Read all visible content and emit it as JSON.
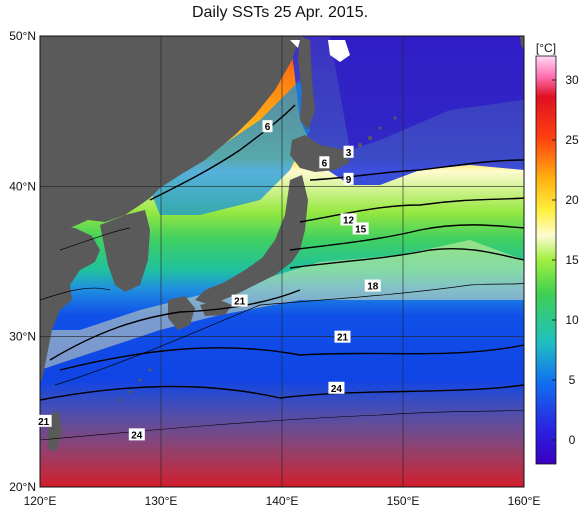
{
  "title": "Daily SSTs 25 Apr. 2015.",
  "map": {
    "lon_range": [
      120,
      160
    ],
    "lat_range": [
      20,
      50
    ],
    "lat_ticks": [
      {
        "value": 50,
        "label": "50°N"
      },
      {
        "value": 40,
        "label": "40°N"
      },
      {
        "value": 30,
        "label": "30°N"
      },
      {
        "value": 20,
        "label": "20°N"
      }
    ],
    "lon_ticks": [
      {
        "value": 120,
        "label": "120°E"
      },
      {
        "value": 130,
        "label": "130°E"
      },
      {
        "value": 140,
        "label": "140°E"
      },
      {
        "value": 150,
        "label": "150°E"
      },
      {
        "value": 160,
        "label": "160°E"
      }
    ],
    "gridlines": true,
    "land_color": "#5a5a5a",
    "contour_labels": [
      {
        "text": "6",
        "lon": 138.8,
        "lat": 44.0
      },
      {
        "text": "3",
        "lon": 145.5,
        "lat": 42.3
      },
      {
        "text": "6",
        "lon": 143.5,
        "lat": 41.6
      },
      {
        "text": "9",
        "lon": 145.5,
        "lat": 40.5
      },
      {
        "text": "12",
        "lon": 145.5,
        "lat": 37.8
      },
      {
        "text": "15",
        "lon": 146.5,
        "lat": 37.2
      },
      {
        "text": "18",
        "lon": 147.5,
        "lat": 33.4
      },
      {
        "text": "21",
        "lon": 136.5,
        "lat": 32.4
      },
      {
        "text": "21",
        "lon": 145.0,
        "lat": 30.0
      },
      {
        "text": "24",
        "lon": 144.5,
        "lat": 26.6
      },
      {
        "text": "24",
        "lon": 128.0,
        "lat": 23.5
      },
      {
        "text": "21",
        "lon": 120.3,
        "lat": 24.4
      }
    ]
  },
  "colorbar": {
    "unit": "[°C]",
    "range": [
      -2,
      32
    ],
    "ticks": [
      0,
      5,
      10,
      15,
      20,
      25,
      30
    ],
    "colors": [
      "#2a00c8",
      "#1040e6",
      "#1a90e8",
      "#22c0c0",
      "#30d070",
      "#60e040",
      "#b0f040",
      "#fff5a0",
      "#ffe020",
      "#ffa010",
      "#ff5010",
      "#e01010",
      "#ff60a0",
      "#ffc8f0"
    ]
  }
}
